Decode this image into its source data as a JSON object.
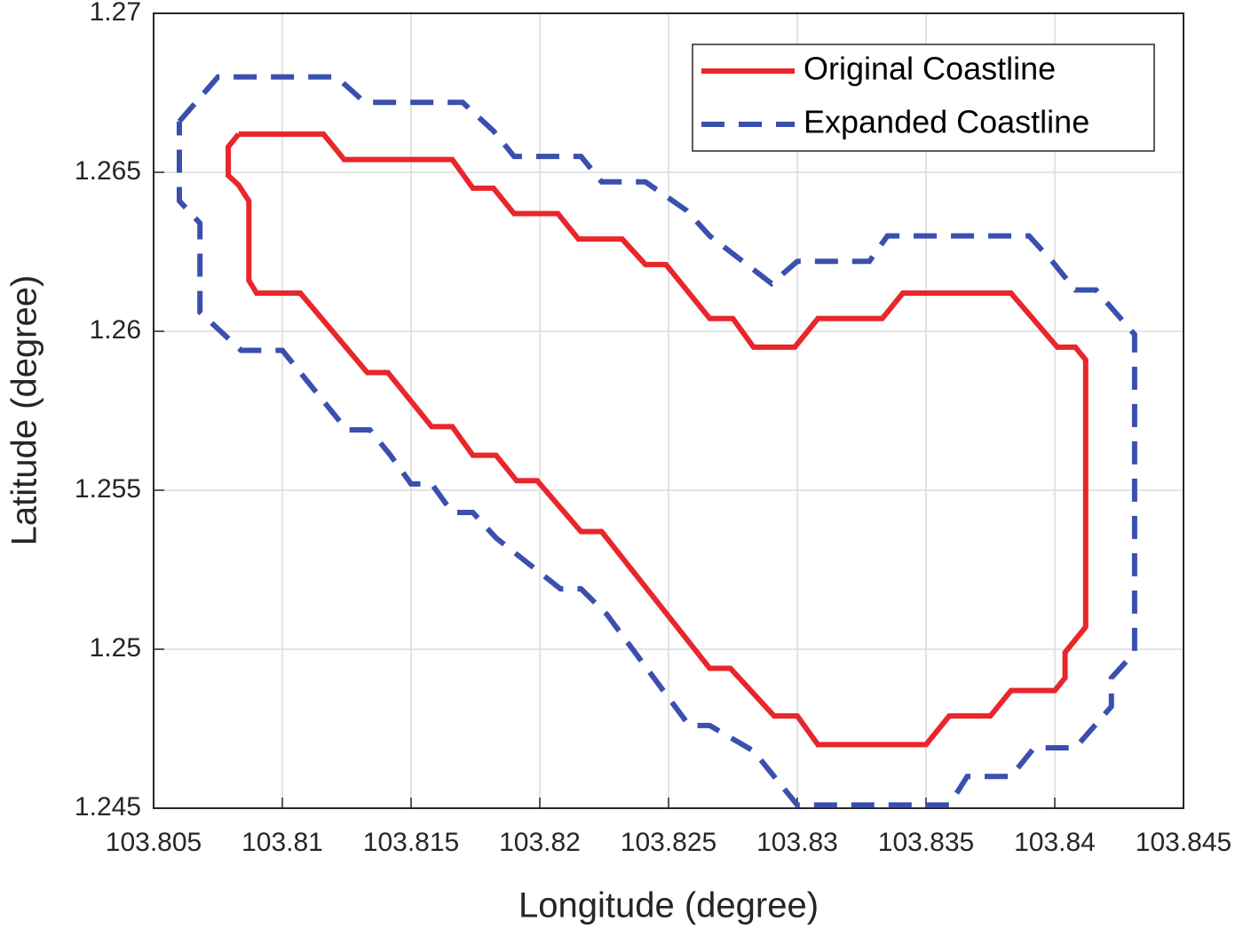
{
  "chart_data": {
    "type": "line",
    "xlabel": "Longitude (degree)",
    "ylabel": "Latitude (degree)",
    "xlim": [
      103.805,
      103.845
    ],
    "xticks": [
      103.805,
      103.81,
      103.815,
      103.82,
      103.825,
      103.83,
      103.835,
      103.84,
      103.845
    ],
    "ylim": [
      1.245,
      1.27
    ],
    "yticks": [
      1.245,
      1.25,
      1.255,
      1.26,
      1.265,
      1.27
    ],
    "grid": true,
    "legend": "upper right",
    "series": [
      {
        "name": "Original Coastline",
        "color": "#e8262b",
        "style": "solid",
        "x": [
          103.8083,
          103.8116,
          103.8124,
          103.8166,
          103.8174,
          103.8182,
          103.819,
          103.8207,
          103.8215,
          103.8232,
          103.8241,
          103.8249,
          103.8266,
          103.8275,
          103.8283,
          103.8299,
          103.8308,
          103.8333,
          103.8341,
          103.8383,
          103.8401,
          103.8408,
          103.8412,
          103.8412,
          103.8404,
          103.8404,
          103.84,
          103.8383,
          103.8375,
          103.8359,
          103.835,
          103.8308,
          103.83,
          103.8291,
          103.8274,
          103.8266,
          103.8224,
          103.8216,
          103.8199,
          103.8191,
          103.8183,
          103.8174,
          103.8166,
          103.8158,
          103.8141,
          103.8133,
          103.8107,
          103.809,
          103.8087,
          103.8087,
          103.8083,
          103.8079,
          103.8079,
          103.8083
        ],
        "values": [
          1.2662,
          1.2662,
          1.2654,
          1.2654,
          1.2645,
          1.2645,
          1.2637,
          1.2637,
          1.2629,
          1.2629,
          1.2621,
          1.2621,
          1.2604,
          1.2604,
          1.2595,
          1.2595,
          1.2604,
          1.2604,
          1.2612,
          1.2612,
          1.2595,
          1.2595,
          1.2591,
          1.2507,
          1.2499,
          1.2491,
          1.2487,
          1.2487,
          1.2479,
          1.2479,
          1.247,
          1.247,
          1.2479,
          1.2479,
          1.2494,
          1.2494,
          1.2537,
          1.2537,
          1.2553,
          1.2553,
          1.2561,
          1.2561,
          1.257,
          1.257,
          1.2587,
          1.2587,
          1.2612,
          1.2612,
          1.2616,
          1.2641,
          1.2646,
          1.2649,
          1.2658,
          1.2662
        ]
      },
      {
        "name": "Expanded Coastline",
        "color": "#3a4fae",
        "style": "dashed",
        "x": [
          103.806,
          103.8075,
          103.8121,
          103.8132,
          103.817,
          103.8182,
          103.819,
          103.8216,
          103.8224,
          103.8241,
          103.8257,
          103.8266,
          103.829,
          103.83,
          103.8328,
          103.8335,
          103.839,
          103.8399,
          103.8408,
          103.8416,
          103.8431,
          103.8431,
          103.8422,
          103.8422,
          103.8408,
          103.8392,
          103.8383,
          103.8366,
          103.8359,
          103.83,
          103.8291,
          103.8283,
          103.8266,
          103.8258,
          103.8226,
          103.8216,
          103.8208,
          103.8183,
          103.8174,
          103.8166,
          103.8158,
          103.815,
          103.8142,
          103.8134,
          103.8125,
          103.81,
          103.8084,
          103.8068,
          103.8068,
          103.806,
          103.806
        ],
        "values": [
          1.2666,
          1.268,
          1.268,
          1.2672,
          1.2672,
          1.2663,
          1.2655,
          1.2655,
          1.2647,
          1.2647,
          1.2638,
          1.263,
          1.2615,
          1.2622,
          1.2622,
          1.263,
          1.263,
          1.2622,
          1.2613,
          1.2613,
          1.2599,
          1.2499,
          1.2491,
          1.2482,
          1.2469,
          1.2469,
          1.246,
          1.246,
          1.2451,
          1.2451,
          1.246,
          1.2468,
          1.2476,
          1.2476,
          1.2511,
          1.2519,
          1.2519,
          1.2535,
          1.2543,
          1.2543,
          1.2552,
          1.2552,
          1.2561,
          1.2569,
          1.2569,
          1.2594,
          1.2594,
          1.2606,
          1.2634,
          1.2641,
          1.2666
        ]
      }
    ]
  }
}
